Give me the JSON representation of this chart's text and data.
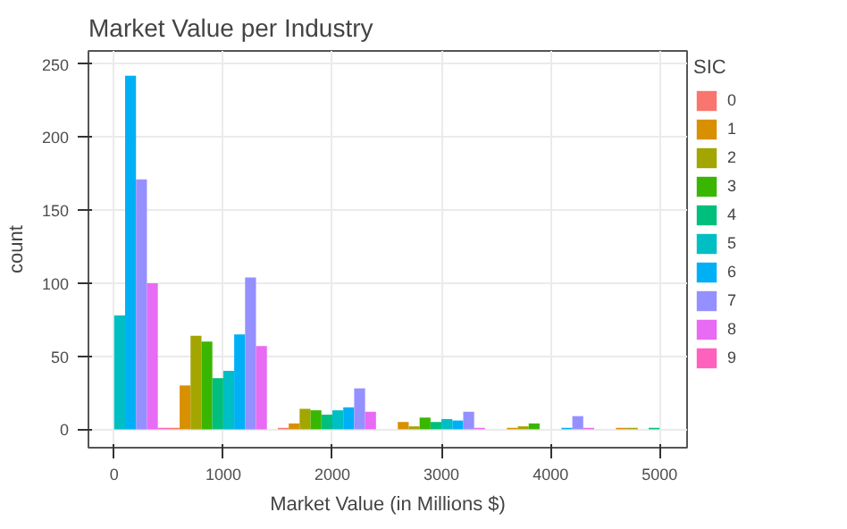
{
  "chart_data": {
    "type": "bar",
    "title": "Market Value per Industry",
    "xlabel": "Market Value (in Millions $)",
    "ylabel": "count",
    "legend_title": "SIC",
    "xlim": [
      -236,
      5252
    ],
    "xticks": [
      0,
      1000,
      2000,
      3000,
      4000,
      5000
    ],
    "ylim": [
      -12.6,
      259
    ],
    "yticks": [
      0,
      50,
      100,
      150,
      200,
      250
    ],
    "grid": true,
    "legend": "right",
    "series": [
      {
        "name": "0",
        "color": "#f8766d",
        "x": [
          550,
          1550
        ],
        "values": [
          1,
          1
        ]
      },
      {
        "name": "1",
        "color": "#d89000",
        "x": [
          650,
          1650,
          2650,
          3650,
          4650
        ],
        "values": [
          30,
          4,
          5,
          1,
          1
        ]
      },
      {
        "name": "2",
        "color": "#a3a500",
        "x": [
          750,
          1750,
          2750,
          3750,
          4750
        ],
        "values": [
          64,
          14,
          2,
          2,
          1
        ]
      },
      {
        "name": "3",
        "color": "#39b600",
        "x": [
          850,
          1850,
          2850,
          3850
        ],
        "values": [
          60,
          13,
          8,
          4
        ]
      },
      {
        "name": "4",
        "color": "#00bf7d",
        "x": [
          950,
          1950,
          2950,
          4950
        ],
        "values": [
          35,
          10,
          5,
          1
        ]
      },
      {
        "name": "5",
        "color": "#00bfc4",
        "x": [
          50,
          1050,
          2050,
          3050
        ],
        "values": [
          78,
          40,
          13,
          7
        ]
      },
      {
        "name": "6",
        "color": "#00b0f6",
        "x": [
          150,
          1150,
          2150,
          3150,
          4150
        ],
        "values": [
          242,
          65,
          15,
          6,
          1
        ]
      },
      {
        "name": "7",
        "color": "#9590ff",
        "x": [
          250,
          1250,
          2250,
          3250,
          4250
        ],
        "values": [
          171,
          104,
          28,
          12,
          9
        ]
      },
      {
        "name": "8",
        "color": "#e76bf3",
        "x": [
          350,
          1350,
          2350,
          3350,
          4350
        ],
        "values": [
          100,
          57,
          12,
          1,
          1
        ]
      },
      {
        "name": "9",
        "color": "#ff62bc",
        "x": [
          450
        ],
        "values": [
          1
        ]
      }
    ]
  }
}
